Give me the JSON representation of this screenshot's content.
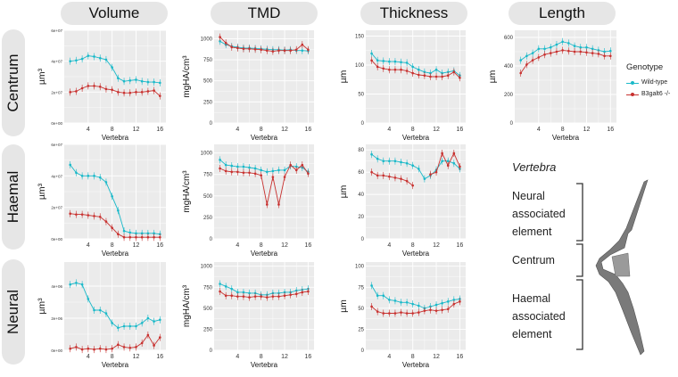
{
  "columns": [
    "Volume",
    "TMD",
    "Thickness",
    "Length"
  ],
  "rows": [
    "Centrum",
    "Haemal",
    "Neural"
  ],
  "xlabel": "Vertebra",
  "legend": {
    "title": "Genotype",
    "items": [
      {
        "label": "Wild-type",
        "color": "#1ab9c9"
      },
      {
        "label": "B3galt6 -/-",
        "color": "#c8312f"
      }
    ]
  },
  "schematic": {
    "title": "Vertebra",
    "labels": [
      "Neural\nassociated\nelement",
      "Centrum",
      "Haemal\nassociated\nelement"
    ]
  },
  "colors": {
    "wildtype": "#1ab9c9",
    "mutant": "#c8312f",
    "panel_bg": "#ebebeb",
    "grid": "#ffffff"
  },
  "chart_data": [
    {
      "type": "line",
      "panel": "Centrum-Volume",
      "ylabel": "µm³",
      "xlim": [
        0,
        17
      ],
      "ylim": [
        0,
        60000000
      ],
      "xticks": [
        4,
        8,
        12,
        16
      ],
      "yticks": [
        0,
        20000000,
        40000000,
        60000000
      ],
      "ytick_labels": [
        "0e+00",
        "2e+07",
        "4e+07",
        "6e+07"
      ],
      "x": [
        1,
        2,
        3,
        4,
        5,
        6,
        7,
        8,
        9,
        10,
        11,
        12,
        13,
        14,
        15,
        16
      ],
      "series": [
        {
          "name": "Wild-type",
          "values": [
            40000000,
            40500000,
            41500000,
            43500000,
            43000000,
            42000000,
            41000000,
            36000000,
            29000000,
            27000000,
            27500000,
            28000000,
            27000000,
            26500000,
            26500000,
            26000000
          ]
        },
        {
          "name": "B3galt6 -/-",
          "values": [
            20000000,
            20500000,
            22500000,
            24000000,
            24000000,
            23500000,
            22000000,
            21500000,
            20000000,
            19500000,
            19500000,
            20000000,
            20000000,
            20500000,
            21000000,
            17500000
          ]
        }
      ]
    },
    {
      "type": "line",
      "panel": "Centrum-TMD",
      "ylabel": "mgHA/cm³",
      "xlim": [
        0,
        17
      ],
      "ylim": [
        0,
        1100
      ],
      "xticks": [
        4,
        8,
        12,
        16
      ],
      "yticks": [
        0,
        250,
        500,
        750,
        1000
      ],
      "ytick_labels": [
        "0",
        "250",
        "500",
        "750",
        "1000"
      ],
      "x": [
        1,
        2,
        3,
        4,
        5,
        6,
        7,
        8,
        9,
        10,
        11,
        12,
        13,
        14,
        15,
        16
      ],
      "series": [
        {
          "name": "Wild-type",
          "values": [
            970,
            930,
            910,
            900,
            890,
            890,
            885,
            880,
            875,
            870,
            870,
            865,
            870,
            860,
            860,
            855
          ]
        },
        {
          "name": "B3galt6 -/-",
          "values": [
            1020,
            950,
            900,
            890,
            880,
            880,
            875,
            870,
            860,
            850,
            860,
            860,
            860,
            870,
            930,
            870
          ]
        }
      ]
    },
    {
      "type": "line",
      "panel": "Centrum-Thickness",
      "ylabel": "µm",
      "xlim": [
        0,
        17
      ],
      "ylim": [
        0,
        160
      ],
      "xticks": [
        4,
        8,
        12,
        16
      ],
      "yticks": [
        0,
        50,
        100,
        150
      ],
      "ytick_labels": [
        "0",
        "50",
        "100",
        "150"
      ],
      "x": [
        1,
        2,
        3,
        4,
        5,
        6,
        7,
        8,
        9,
        10,
        11,
        12,
        13,
        14,
        15,
        16
      ],
      "series": [
        {
          "name": "Wild-type",
          "values": [
            120,
            108,
            107,
            106,
            106,
            105,
            104,
            97,
            92,
            88,
            86,
            92,
            86,
            88,
            90,
            82
          ]
        },
        {
          "name": "B3galt6 -/-",
          "values": [
            108,
            97,
            94,
            92,
            92,
            92,
            90,
            86,
            83,
            82,
            80,
            80,
            80,
            82,
            88,
            78
          ]
        }
      ]
    },
    {
      "type": "line",
      "panel": "Centrum-Length",
      "ylabel": "µm",
      "xlim": [
        0,
        17
      ],
      "ylim": [
        0,
        650
      ],
      "xticks": [
        4,
        8,
        12,
        16
      ],
      "yticks": [
        0,
        200,
        400,
        600
      ],
      "ytick_labels": [
        "0",
        "200",
        "400",
        "600"
      ],
      "x": [
        1,
        2,
        3,
        4,
        5,
        6,
        7,
        8,
        9,
        10,
        11,
        12,
        13,
        14,
        15,
        16
      ],
      "series": [
        {
          "name": "Wild-type",
          "values": [
            440,
            470,
            490,
            520,
            520,
            530,
            550,
            570,
            560,
            540,
            530,
            530,
            520,
            510,
            500,
            505
          ]
        },
        {
          "name": "B3galt6 -/-",
          "values": [
            350,
            410,
            440,
            460,
            480,
            490,
            500,
            510,
            505,
            500,
            500,
            495,
            490,
            485,
            470,
            470
          ]
        }
      ]
    },
    {
      "type": "line",
      "panel": "Haemal-Volume",
      "ylabel": "µm³",
      "xlim": [
        0,
        17
      ],
      "ylim": [
        0,
        60000000
      ],
      "xticks": [
        4,
        8,
        12,
        16
      ],
      "yticks": [
        0,
        20000000,
        40000000,
        60000000
      ],
      "ytick_labels": [
        "0e+00",
        "2e+07",
        "4e+07",
        "6e+07"
      ],
      "x": [
        1,
        2,
        3,
        4,
        5,
        6,
        7,
        8,
        9,
        10,
        11,
        12,
        13,
        14,
        15,
        16
      ],
      "series": [
        {
          "name": "Wild-type",
          "values": [
            47000000,
            42000000,
            40000000,
            40000000,
            40000000,
            39000000,
            36000000,
            27000000,
            18000000,
            5000000,
            4000000,
            3500000,
            3500000,
            3500000,
            3500000,
            3000000
          ]
        },
        {
          "name": "B3galt6 -/-",
          "values": [
            16000000,
            15500000,
            15500000,
            15000000,
            14500000,
            14000000,
            11000000,
            7000000,
            3000000,
            1000000,
            1000000,
            1000000,
            1000000,
            1000000,
            1000000,
            1000000
          ]
        }
      ]
    },
    {
      "type": "line",
      "panel": "Haemal-TMD",
      "ylabel": "mgHA/cm³",
      "xlim": [
        0,
        17
      ],
      "ylim": [
        0,
        1100
      ],
      "xticks": [
        4,
        8,
        12,
        16
      ],
      "yticks": [
        0,
        250,
        500,
        750,
        1000
      ],
      "ytick_labels": [
        "0",
        "250",
        "500",
        "750",
        "1000"
      ],
      "x": [
        1,
        2,
        3,
        4,
        5,
        6,
        7,
        8,
        9,
        10,
        11,
        12,
        13,
        14,
        15,
        16
      ],
      "series": [
        {
          "name": "Wild-type",
          "values": [
            920,
            860,
            850,
            840,
            840,
            830,
            820,
            800,
            780,
            790,
            800,
            800,
            850,
            840,
            830,
            780
          ]
        },
        {
          "name": "B3galt6 -/-",
          "values": [
            820,
            790,
            780,
            780,
            770,
            770,
            760,
            740,
            400,
            720,
            400,
            720,
            860,
            800,
            860,
            760
          ]
        }
      ]
    },
    {
      "type": "line",
      "panel": "Haemal-Thickness",
      "ylabel": "µm",
      "xlim": [
        0,
        17
      ],
      "ylim": [
        0,
        85
      ],
      "xticks": [
        4,
        8,
        12,
        16
      ],
      "yticks": [
        0,
        20,
        40,
        60,
        80
      ],
      "ytick_labels": [
        "0",
        "20",
        "40",
        "60",
        "80"
      ],
      "x": [
        1,
        2,
        3,
        4,
        5,
        6,
        7,
        8,
        9,
        10,
        11,
        12,
        13,
        14,
        15,
        16
      ],
      "series": [
        {
          "name": "Wild-type",
          "values": [
            76,
            72,
            70,
            70,
            70,
            69,
            68,
            66,
            63,
            54,
            57,
            62,
            70,
            70,
            68,
            63
          ]
        },
        {
          "name": "B3galt6 -/-",
          "values": [
            60,
            57,
            57,
            56,
            55,
            54,
            52,
            48,
            null,
            null,
            58,
            60,
            77,
            66,
            77,
            65
          ]
        }
      ]
    },
    {
      "type": "line",
      "panel": "Neural-Volume",
      "ylabel": "µm³",
      "xlim": [
        0,
        17
      ],
      "ylim": [
        0,
        5500000
      ],
      "xticks": [
        4,
        8,
        12,
        16
      ],
      "yticks": [
        0,
        2000000,
        4000000
      ],
      "ytick_labels": [
        "0e+00",
        "2e+06",
        "4e+06"
      ],
      "x": [
        1,
        2,
        3,
        4,
        5,
        6,
        7,
        8,
        9,
        10,
        11,
        12,
        13,
        14,
        15,
        16
      ],
      "series": [
        {
          "name": "Wild-type",
          "values": [
            4100000,
            4200000,
            4100000,
            3200000,
            2500000,
            2500000,
            2300000,
            1700000,
            1400000,
            1500000,
            1500000,
            1500000,
            1700000,
            2000000,
            1800000,
            1900000
          ]
        },
        {
          "name": "B3galt6 -/-",
          "values": [
            100000,
            200000,
            50000,
            100000,
            50000,
            100000,
            50000,
            100000,
            350000,
            200000,
            150000,
            200000,
            450000,
            950000,
            300000,
            800000
          ]
        }
      ]
    },
    {
      "type": "line",
      "panel": "Neural-TMD",
      "ylabel": "mgHA/cm³",
      "xlim": [
        0,
        17
      ],
      "ylim": [
        0,
        1050
      ],
      "xticks": [
        4,
        8,
        12,
        16
      ],
      "yticks": [
        0,
        250,
        500,
        750,
        1000
      ],
      "ytick_labels": [
        "0",
        "250",
        "500",
        "750",
        "1000"
      ],
      "x": [
        1,
        2,
        3,
        4,
        5,
        6,
        7,
        8,
        9,
        10,
        11,
        12,
        13,
        14,
        15,
        16
      ],
      "series": [
        {
          "name": "Wild-type",
          "values": [
            790,
            760,
            730,
            690,
            690,
            680,
            680,
            660,
            660,
            680,
            680,
            690,
            690,
            710,
            720,
            730
          ]
        },
        {
          "name": "B3galt6 -/-",
          "values": [
            700,
            650,
            650,
            640,
            640,
            630,
            640,
            640,
            630,
            640,
            640,
            650,
            660,
            670,
            690,
            700
          ]
        }
      ]
    },
    {
      "type": "line",
      "panel": "Neural-Thickness",
      "ylabel": "µm",
      "xlim": [
        0,
        17
      ],
      "ylim": [
        0,
        105
      ],
      "xticks": [
        4,
        8,
        12,
        16
      ],
      "yticks": [
        0,
        25,
        50,
        75,
        100
      ],
      "ytick_labels": [
        "0",
        "25",
        "50",
        "75",
        "100"
      ],
      "x": [
        1,
        2,
        3,
        4,
        5,
        6,
        7,
        8,
        9,
        10,
        11,
        12,
        13,
        14,
        15,
        16
      ],
      "series": [
        {
          "name": "Wild-type",
          "values": [
            77,
            65,
            65,
            60,
            59,
            57,
            57,
            55,
            53,
            50,
            52,
            54,
            56,
            58,
            60,
            61
          ]
        },
        {
          "name": "B3galt6 -/-",
          "values": [
            52,
            46,
            44,
            44,
            44,
            45,
            44,
            44,
            45,
            47,
            48,
            47,
            48,
            49,
            55,
            58
          ]
        }
      ]
    }
  ]
}
